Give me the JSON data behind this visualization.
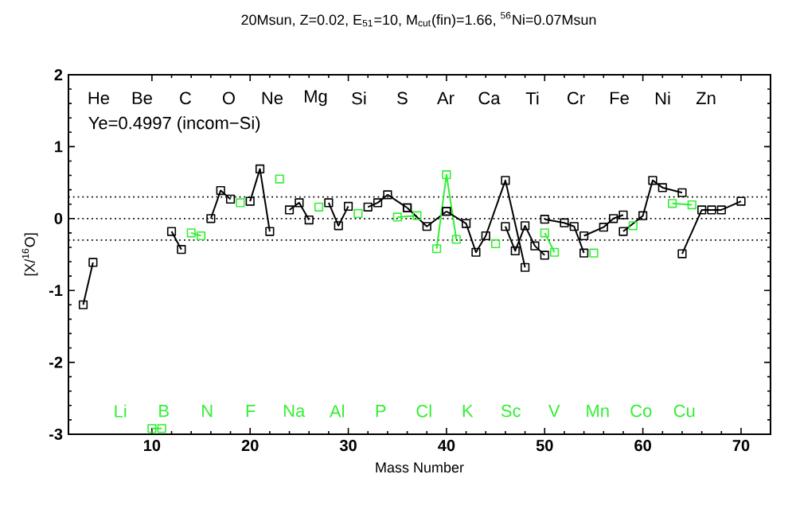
{
  "chart_data": {
    "type": "line",
    "title": "20Msun, Z=0.02, E$_{51}$=10, M$_{cut}$(fin)=1.66, $^{56}$Ni=0.07Msun",
    "xlabel": "Mass Number",
    "ylabel": "[X/$^{16}$O]",
    "xlim": [
      1.5,
      73
    ],
    "ylim": [
      -3,
      2
    ],
    "xticks": [
      10,
      20,
      30,
      40,
      50,
      60,
      70
    ],
    "yticks": [
      -3,
      -2,
      -1,
      0,
      1,
      2
    ],
    "grid": false,
    "marker": "square",
    "line_style": "solid",
    "ref_lines": [
      {
        "axis": "y",
        "value": 0.3,
        "line_style": "dotted",
        "color": "#000000"
      },
      {
        "axis": "y",
        "value": 0,
        "line_style": "dotted",
        "color": "#000000"
      },
      {
        "axis": "y",
        "value": -0.3,
        "line_style": "dotted",
        "color": "#000000"
      }
    ],
    "series": [
      {
        "color": "#000000",
        "x": [
          3,
          4
        ],
        "values": [
          -1.2,
          -0.61
        ]
      },
      {
        "color": "#33ee33",
        "x": [
          10,
          11
        ],
        "values": [
          -2.92,
          -2.92
        ]
      },
      {
        "color": "#000000",
        "x": [
          12,
          13
        ],
        "values": [
          -0.18,
          -0.43
        ]
      },
      {
        "color": "#33ee33",
        "x": [
          14,
          15
        ],
        "values": [
          -0.2,
          -0.24
        ]
      },
      {
        "color": "#000000",
        "x": [
          16,
          17,
          18
        ],
        "values": [
          0.0,
          0.39,
          0.27
        ]
      },
      {
        "color": "#33ee33",
        "x": [
          19
        ],
        "values": [
          0.22
        ]
      },
      {
        "color": "#000000",
        "x": [
          20,
          21,
          22
        ],
        "values": [
          0.24,
          0.69,
          -0.18
        ]
      },
      {
        "color": "#33ee33",
        "x": [
          23
        ],
        "values": [
          0.55
        ]
      },
      {
        "color": "#000000",
        "x": [
          24,
          25,
          26
        ],
        "values": [
          0.12,
          0.22,
          -0.02
        ]
      },
      {
        "color": "#33ee33",
        "x": [
          27
        ],
        "values": [
          0.16
        ]
      },
      {
        "color": "#000000",
        "x": [
          28,
          29,
          30
        ],
        "values": [
          0.22,
          -0.1,
          0.17
        ]
      },
      {
        "color": "#33ee33",
        "x": [
          31
        ],
        "values": [
          0.07
        ]
      },
      {
        "color": "#000000",
        "x": [
          32,
          33,
          34,
          36
        ],
        "values": [
          0.16,
          0.22,
          0.33,
          0.15
        ]
      },
      {
        "color": "#33ee33",
        "x": [
          35,
          37
        ],
        "values": [
          0.02,
          0.04
        ]
      },
      {
        "color": "#000000",
        "x": [
          36,
          38,
          40
        ],
        "values": [
          0.15,
          -0.11,
          0.1
        ]
      },
      {
        "color": "#33ee33",
        "x": [
          39,
          40,
          41
        ],
        "values": [
          -0.42,
          0.61,
          -0.29
        ]
      },
      {
        "color": "#000000",
        "x": [
          40,
          42,
          43,
          44,
          46,
          48
        ],
        "values": [
          0.1,
          -0.07,
          -0.47,
          -0.24,
          0.53,
          -0.68
        ]
      },
      {
        "color": "#33ee33",
        "x": [
          45
        ],
        "values": [
          -0.35
        ]
      },
      {
        "color": "#000000",
        "x": [
          46,
          47,
          48,
          49,
          50
        ],
        "values": [
          -0.11,
          -0.45,
          -0.1,
          -0.38,
          -0.51
        ]
      },
      {
        "color": "#33ee33",
        "x": [
          50,
          51
        ],
        "values": [
          -0.2,
          -0.47
        ]
      },
      {
        "color": "#000000",
        "x": [
          50,
          52,
          53,
          54
        ],
        "values": [
          -0.01,
          -0.06,
          -0.11,
          -0.48
        ]
      },
      {
        "color": "#33ee33",
        "x": [
          55
        ],
        "values": [
          -0.48
        ]
      },
      {
        "color": "#000000",
        "x": [
          54,
          56,
          57,
          58
        ],
        "values": [
          -0.24,
          -0.12,
          0.0,
          0.05
        ]
      },
      {
        "color": "#33ee33",
        "x": [
          59
        ],
        "values": [
          -0.1
        ]
      },
      {
        "color": "#000000",
        "x": [
          58,
          60,
          61,
          62,
          64
        ],
        "values": [
          -0.18,
          0.04,
          0.53,
          0.43,
          0.36
        ]
      },
      {
        "color": "#33ee33",
        "x": [
          63,
          65
        ],
        "values": [
          0.21,
          0.19
        ]
      },
      {
        "color": "#000000",
        "x": [
          64,
          66,
          67,
          68,
          70
        ],
        "values": [
          -0.49,
          0.12,
          0.12,
          0.12,
          0.24
        ]
      }
    ],
    "annotations": [
      "Ye=0.4997 (incom−Si)",
      "He",
      "Li",
      "Be",
      "B",
      "C",
      "N",
      "O",
      "F",
      "Ne",
      "Na",
      "Mg",
      "Al",
      "Si",
      "P",
      "S",
      "Cl",
      "Ar",
      "K",
      "Ca",
      "Sc",
      "Ti",
      "V",
      "Cr",
      "Mn",
      "Fe",
      "Co",
      "Ni",
      "Cu",
      "Zn"
    ]
  }
}
